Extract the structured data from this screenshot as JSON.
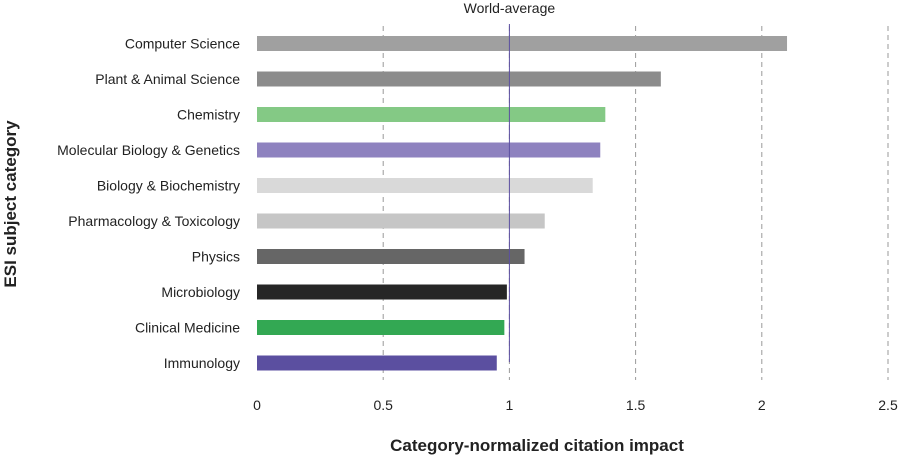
{
  "chart_data": {
    "type": "bar",
    "orientation": "horizontal",
    "categories": [
      "Computer Science",
      "Plant & Animal Science",
      "Chemistry",
      "Molecular Biology & Genetics",
      "Biology & Biochemistry",
      "Pharmacology & Toxicology",
      "Physics",
      "Microbiology",
      "Clinical Medicine",
      "Immunology"
    ],
    "values": [
      2.1,
      1.6,
      1.38,
      1.36,
      1.33,
      1.14,
      1.06,
      0.99,
      0.98,
      0.95
    ],
    "colors": [
      "#a0a0a0",
      "#8c8c8c",
      "#84c985",
      "#8e82bf",
      "#d9d9d9",
      "#c6c6c6",
      "#666666",
      "#262626",
      "#33a853",
      "#5b4fa0"
    ],
    "xlabel": "Category-normalized citation impact",
    "ylabel": "ESI subject category",
    "xlim": [
      0,
      2.5
    ],
    "xticks": [
      "0",
      "0.5",
      "1",
      "1.5",
      "2",
      "2.5"
    ],
    "grid": "vertical-dashed",
    "reference_line": {
      "value": 1,
      "label": "World-average",
      "color": "#5b4fa0"
    }
  }
}
